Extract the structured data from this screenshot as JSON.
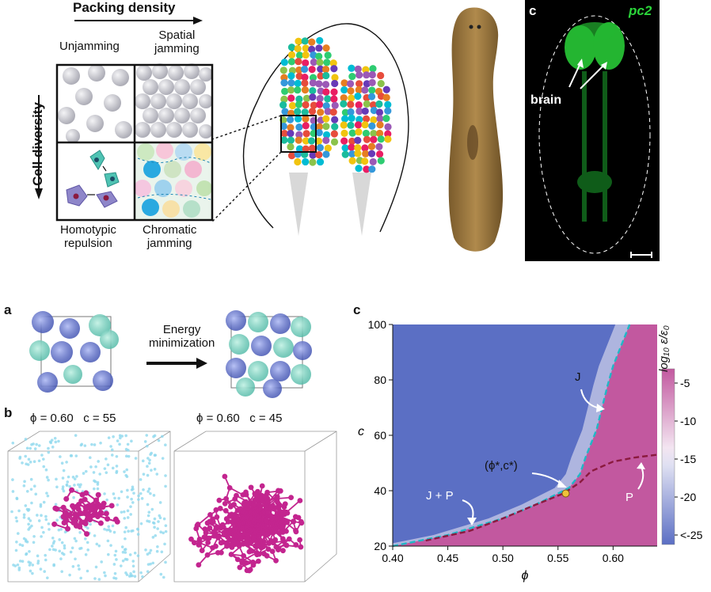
{
  "top": {
    "packing_density_label": "Packing density",
    "cell_diversity_label": "Cell diversity",
    "unjamming_label": "Unjamming",
    "spatial_jamming_label": "Spatial\njamming",
    "homotypic_label": "Homotypic\nrepulsion",
    "chromatic_label": "Chromatic\njamming",
    "fluor_panel_letter": "c",
    "fluor_gene_label": "pc2",
    "brain_label": "brain"
  },
  "panel_a": {
    "letter": "a",
    "arrow_label": "Energy\nminimization"
  },
  "panel_b": {
    "letter": "b",
    "left_caption": "ϕ = 0.60   c = 55",
    "right_caption": "ϕ = 0.60   c = 45"
  },
  "panel_c": {
    "letter": "c",
    "annotations": {
      "J": "J",
      "P": "P",
      "JP": "J + P",
      "critical": "(ϕ*,c*)"
    },
    "colorbar_label": "log₁₀ ε/ε₀",
    "colorbar_ticks": [
      "-5",
      "-10",
      "-15",
      "-20",
      "<-25"
    ]
  },
  "chart_data": {
    "type": "heatmap",
    "xlabel": "ϕ",
    "ylabel": "c",
    "xlim": [
      0.4,
      0.64
    ],
    "ylim": [
      20,
      100
    ],
    "x_ticks": [
      "0.40",
      "0.45",
      "0.50",
      "0.55",
      "0.60"
    ],
    "y_ticks": [
      "20",
      "40",
      "60",
      "80",
      "100"
    ],
    "colors": {
      "low": "#5b6fc4",
      "mid": "#f3eef5",
      "high": "#c2589f",
      "J_line": "#1fb8c6",
      "P_line": "#8b1a3e",
      "critical_point": "#f0c23a"
    },
    "series": [
      {
        "name": "J",
        "x": [
          0.4,
          0.45,
          0.5,
          0.53,
          0.55,
          0.56,
          0.57,
          0.575,
          0.58,
          0.585,
          0.59,
          0.595,
          0.6,
          0.61,
          0.615
        ],
        "y": [
          20,
          24,
          30,
          35,
          39,
          41,
          46,
          52,
          57,
          62,
          70,
          78,
          85,
          95,
          100
        ]
      },
      {
        "name": "P",
        "x": [
          0.43,
          0.47,
          0.5,
          0.53,
          0.555,
          0.57,
          0.58,
          0.6,
          0.62,
          0.64
        ],
        "y": [
          22,
          25.5,
          30,
          35,
          39,
          43,
          47,
          50.5,
          52,
          53
        ]
      }
    ],
    "critical_point": {
      "x": 0.557,
      "y": 39
    }
  }
}
